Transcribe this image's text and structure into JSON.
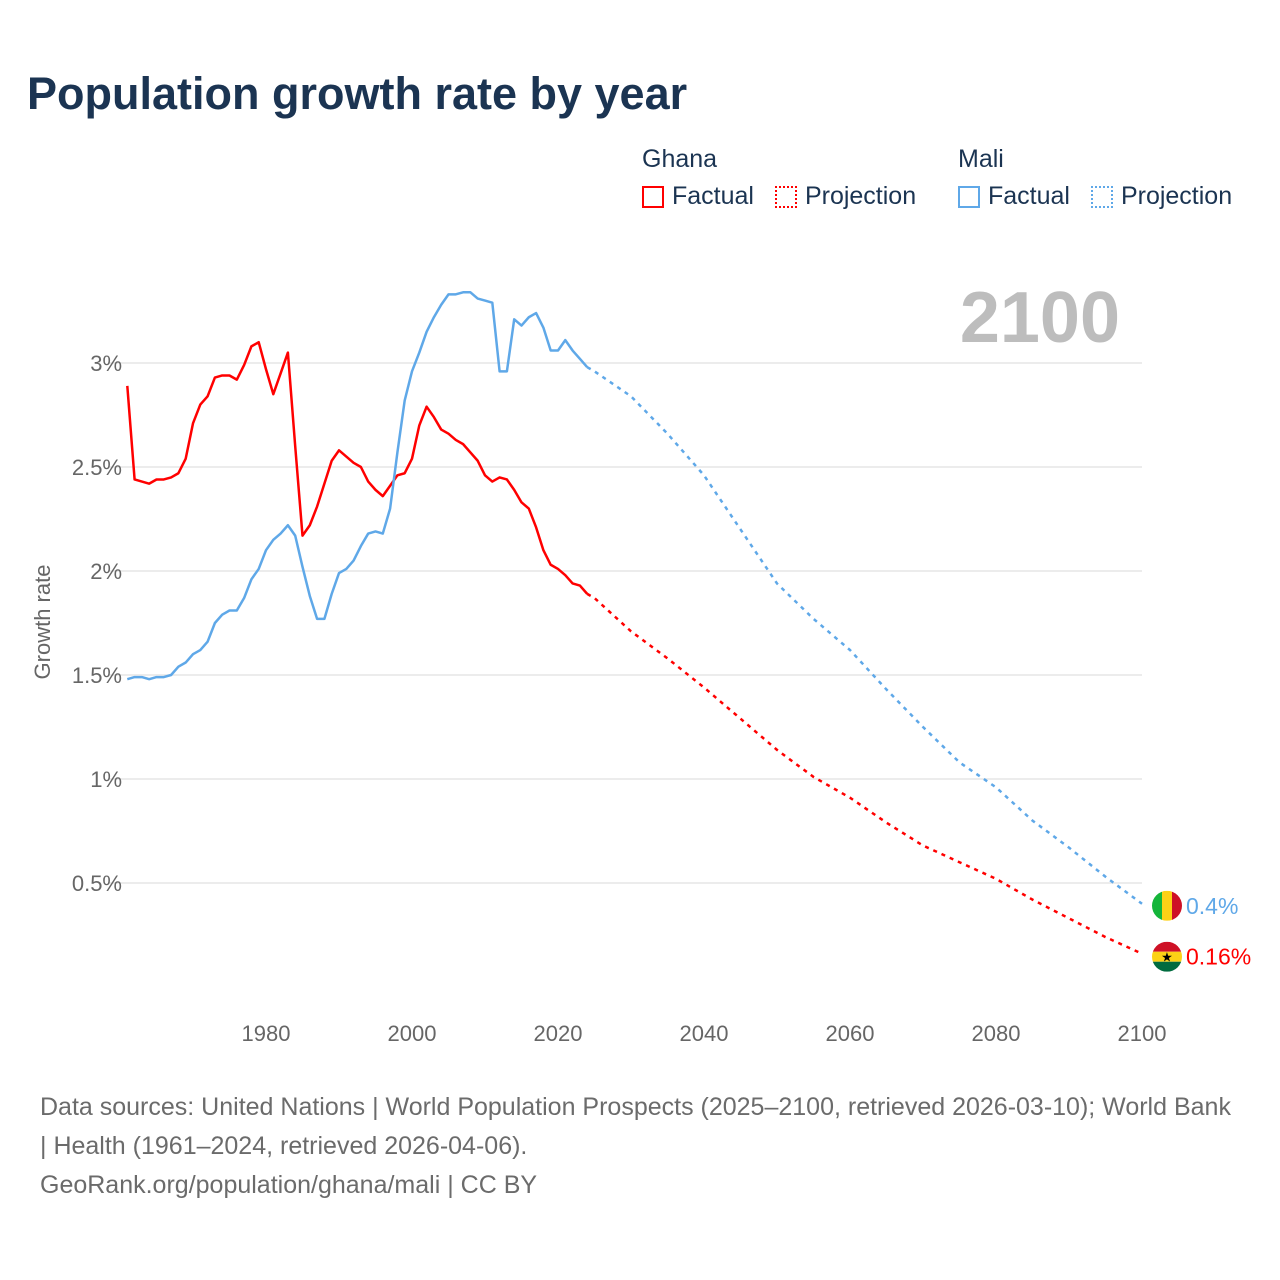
{
  "title": "Population growth rate by year",
  "legend": {
    "groups": [
      {
        "name": "Ghana",
        "color": "#ff0000",
        "factual_label": "Factual",
        "projection_label": "Projection"
      },
      {
        "name": "Mali",
        "color": "#5fa8e8",
        "factual_label": "Factual",
        "projection_label": "Projection"
      }
    ]
  },
  "footer": {
    "sources": "Data sources: United Nations | World Population Prospects (2025–2100, retrieved 2026-03-10); World Bank | Health (1961–2024, retrieved 2026-04-06).",
    "credit": "GeoRank.org/population/ghana/mali | CC BY"
  },
  "chart_data": {
    "type": "line",
    "title": "Population growth rate by year",
    "ylabel": "Growth rate",
    "xlabel": "",
    "current_year_label": "2100",
    "xlim": [
      1961,
      2100
    ],
    "ylim": [
      0,
      3.4
    ],
    "x_ticks": [
      1980,
      2000,
      2020,
      2040,
      2060,
      2080,
      2100
    ],
    "y_ticks": [
      {
        "v": 0.5,
        "label": "0.5%"
      },
      {
        "v": 1,
        "label": "1%"
      },
      {
        "v": 1.5,
        "label": "1.5%"
      },
      {
        "v": 2,
        "label": "2%"
      },
      {
        "v": 2.5,
        "label": "2.5%"
      },
      {
        "v": 3,
        "label": "3%"
      }
    ],
    "grid": true,
    "series": [
      {
        "name": "Ghana",
        "color": "#ff0000",
        "end_label": "0.16%",
        "factual": {
          "start_year": 1961,
          "values": [
            2.89,
            2.44,
            2.43,
            2.42,
            2.44,
            2.44,
            2.45,
            2.47,
            2.54,
            2.71,
            2.8,
            2.84,
            2.93,
            2.94,
            2.94,
            2.92,
            2.99,
            3.08,
            3.1,
            2.97,
            2.85,
            2.95,
            3.05,
            2.6,
            2.17,
            2.22,
            2.31,
            2.42,
            2.53,
            2.58,
            2.55,
            2.52,
            2.5,
            2.43,
            2.39,
            2.36,
            2.41,
            2.46,
            2.47,
            2.54,
            2.7,
            2.79,
            2.74,
            2.68,
            2.66,
            2.63,
            2.61,
            2.57,
            2.53,
            2.46,
            2.43,
            2.45,
            2.44,
            2.39,
            2.33,
            2.3,
            2.21,
            2.1,
            2.03,
            2.01,
            1.98,
            1.94,
            1.93,
            1.89
          ]
        },
        "projection": {
          "years": [
            2024,
            2025,
            2030,
            2035,
            2040,
            2045,
            2050,
            2055,
            2060,
            2065,
            2070,
            2075,
            2080,
            2085,
            2090,
            2095,
            2100
          ],
          "values": [
            1.89,
            1.87,
            1.71,
            1.58,
            1.44,
            1.29,
            1.14,
            1.01,
            0.91,
            0.79,
            0.68,
            0.6,
            0.52,
            0.42,
            0.33,
            0.24,
            0.16
          ]
        }
      },
      {
        "name": "Mali",
        "color": "#5fa8e8",
        "end_label": "0.4%",
        "factual": {
          "start_year": 1961,
          "values": [
            1.48,
            1.49,
            1.49,
            1.48,
            1.49,
            1.49,
            1.5,
            1.54,
            1.56,
            1.6,
            1.62,
            1.66,
            1.75,
            1.79,
            1.81,
            1.81,
            1.87,
            1.96,
            2.01,
            2.1,
            2.15,
            2.18,
            2.22,
            2.17,
            2.02,
            1.88,
            1.77,
            1.77,
            1.89,
            1.99,
            2.01,
            2.05,
            2.12,
            2.18,
            2.19,
            2.18,
            2.3,
            2.57,
            2.82,
            2.96,
            3.05,
            3.15,
            3.22,
            3.28,
            3.33,
            3.33,
            3.34,
            3.34,
            3.31,
            3.3,
            3.29,
            2.96,
            2.96,
            3.21,
            3.18,
            3.22,
            3.24,
            3.17,
            3.06,
            3.06,
            3.11,
            3.06,
            3.02,
            2.98
          ]
        },
        "projection": {
          "years": [
            2024,
            2025,
            2030,
            2035,
            2040,
            2045,
            2050,
            2055,
            2060,
            2065,
            2070,
            2075,
            2080,
            2085,
            2090,
            2095,
            2100
          ],
          "values": [
            2.98,
            2.96,
            2.84,
            2.66,
            2.46,
            2.2,
            1.94,
            1.77,
            1.62,
            1.43,
            1.25,
            1.08,
            0.96,
            0.8,
            0.67,
            0.53,
            0.4
          ]
        }
      }
    ]
  }
}
